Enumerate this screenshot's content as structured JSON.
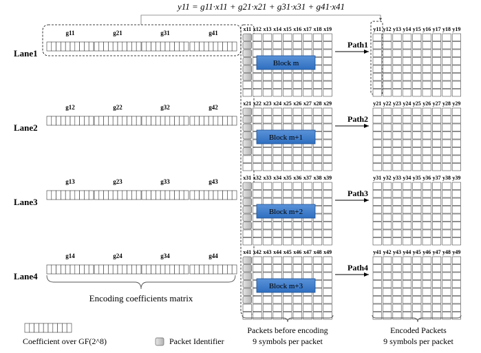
{
  "formula": "y11 = g11·x11 + g21·x21 + g31·x31 + g41·x41",
  "lanes": [
    {
      "label": "Lane1",
      "coefs": [
        "g11",
        "g21",
        "g31",
        "g41"
      ],
      "xcols": [
        "x11",
        "x12",
        "x13",
        "x14",
        "x15",
        "x16",
        "x17",
        "x18",
        "x19"
      ],
      "block": "Block m",
      "path": "Path1",
      "ycols": [
        "y11",
        "y12",
        "y13",
        "y14",
        "y15",
        "y16",
        "y17",
        "y18",
        "y19"
      ]
    },
    {
      "label": "Lane2",
      "coefs": [
        "g12",
        "g22",
        "g32",
        "g42"
      ],
      "xcols": [
        "x21",
        "x22",
        "x23",
        "x24",
        "x25",
        "x26",
        "x27",
        "x28",
        "x29"
      ],
      "block": "Block m+1",
      "path": "Path2",
      "ycols": [
        "y21",
        "y22",
        "y23",
        "y24",
        "y25",
        "y26",
        "y27",
        "y28",
        "y29"
      ]
    },
    {
      "label": "Lane3",
      "coefs": [
        "g13",
        "g23",
        "g33",
        "g43"
      ],
      "xcols": [
        "x31",
        "x32",
        "x33",
        "x34",
        "x35",
        "x36",
        "x37",
        "x38",
        "x39"
      ],
      "block": "Block m+2",
      "path": "Path3",
      "ycols": [
        "y31",
        "y32",
        "y33",
        "y34",
        "y35",
        "y36",
        "y37",
        "y38",
        "y39"
      ]
    },
    {
      "label": "Lane4",
      "coefs": [
        "g14",
        "g24",
        "g34",
        "g44"
      ],
      "xcols": [
        "x41",
        "x42",
        "x43",
        "x44",
        "x45",
        "x46",
        "x47",
        "x48",
        "x49"
      ],
      "block": "Block m+3",
      "path": "Path4",
      "ycols": [
        "y41",
        "y42",
        "y43",
        "y44",
        "y45",
        "y46",
        "y47",
        "y48",
        "y49"
      ]
    }
  ],
  "captions": {
    "coef_matrix": "Encoding coefficients matrix",
    "packets_before_1": "Packets before encoding",
    "packets_before_2": "9 symbols per packet",
    "encoded_1": "Encoded  Packets",
    "encoded_2": "9 symbols per packet"
  },
  "legend": {
    "coefficient": "Coefficient over GF(2^8)",
    "identifier": "Packet Identifier"
  },
  "colors": {
    "block_fill": "#2f6fc0",
    "block_fill_light": "#5a92d8",
    "identifier_fill": "#c4c4c4",
    "line": "#000000"
  }
}
